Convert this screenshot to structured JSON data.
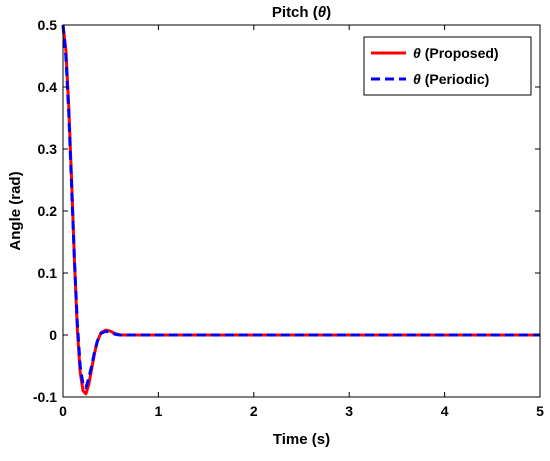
{
  "chart_data": {
    "type": "line",
    "title": "Pitch (θ)",
    "title_main": "Pitch (",
    "title_symbol": "θ",
    "title_close": ")",
    "xlabel": "Time (s)",
    "ylabel": "Angle (rad)",
    "xlim": [
      0,
      5
    ],
    "ylim": [
      -0.1,
      0.5
    ],
    "x_ticks": [
      0,
      1,
      2,
      3,
      4,
      5
    ],
    "y_ticks": [
      -0.1,
      0,
      0.1,
      0.2,
      0.3,
      0.4,
      0.5
    ],
    "grid": false,
    "legend_position": "top-right",
    "series": [
      {
        "name": "θ (Proposed)",
        "symbol": "θ",
        "label": "(Proposed)",
        "color": "#ff0000",
        "dash": "solid",
        "x": [
          0,
          0.03,
          0.06,
          0.09,
          0.12,
          0.15,
          0.18,
          0.21,
          0.24,
          0.27,
          0.3,
          0.33,
          0.36,
          0.4,
          0.45,
          0.5,
          0.55,
          0.6,
          0.7,
          0.8,
          1.0,
          2.0,
          3.0,
          4.0,
          5.0
        ],
        "y": [
          0.5,
          0.46,
          0.37,
          0.25,
          0.12,
          0.01,
          -0.06,
          -0.09,
          -0.095,
          -0.08,
          -0.055,
          -0.03,
          -0.01,
          0.004,
          0.008,
          0.006,
          0.002,
          0.0,
          0.0,
          0.0,
          0.0,
          0.0,
          0.0,
          0.0,
          0.0
        ]
      },
      {
        "name": "θ (Periodic)",
        "symbol": "θ",
        "label": "(Periodic)",
        "color": "#0000ff",
        "dash": "dashed",
        "x": [
          0,
          0.03,
          0.06,
          0.09,
          0.12,
          0.15,
          0.18,
          0.21,
          0.24,
          0.27,
          0.3,
          0.33,
          0.36,
          0.4,
          0.45,
          0.5,
          0.55,
          0.6,
          0.7,
          0.8,
          1.0,
          2.0,
          3.0,
          4.0,
          5.0
        ],
        "y": [
          0.5,
          0.45,
          0.36,
          0.24,
          0.12,
          0.02,
          -0.05,
          -0.08,
          -0.085,
          -0.07,
          -0.05,
          -0.028,
          -0.01,
          0.003,
          0.006,
          0.004,
          0.001,
          0.0,
          0.0,
          0.0,
          0.0,
          0.0,
          0.0,
          0.0,
          0.0
        ]
      }
    ]
  }
}
